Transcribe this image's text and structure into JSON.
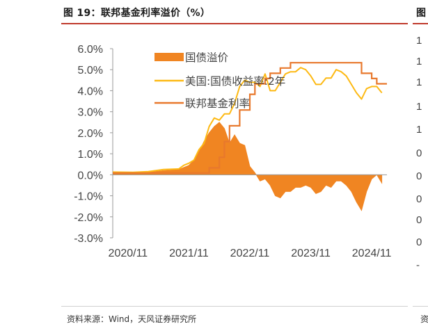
{
  "figure": {
    "title": "图 19：联邦基金利率溢价（%）",
    "source": "资料来源：Wind，天风证券研究所",
    "right_title_fragment": "图",
    "right_source_fragment": "资"
  },
  "right_panel_ticks": [
    "1",
    "1",
    "1",
    "1",
    "1",
    "0",
    "0",
    "0",
    "0",
    "0",
    "-"
  ],
  "colors": {
    "premium": "#F08522",
    "treasury": "#FDB913",
    "fedfunds": "#E8782C",
    "axis": "#9a9a9a",
    "rule": "#c0392b"
  },
  "chart_data": {
    "type": "line",
    "title": "",
    "xlabel": "",
    "ylabel": "",
    "ylim": [
      -3.0,
      6.0
    ],
    "yticks": [
      "6.0%",
      "5.0%",
      "4.0%",
      "3.0%",
      "2.0%",
      "1.0%",
      "0.0%",
      "-1.0%",
      "-2.0%",
      "-3.0%"
    ],
    "x_range": [
      "2020-08",
      "2025-02"
    ],
    "xticks": [
      "2020/11",
      "2021/11",
      "2022/11",
      "2023/11",
      "2024/11"
    ],
    "legend_position": "top-left",
    "grid": false,
    "series": [
      {
        "name": "国债溢价",
        "style": "area",
        "x": [
          "2020-08",
          "2020-12",
          "2021-03",
          "2021-06",
          "2021-09",
          "2021-10",
          "2021-11",
          "2021-12",
          "2022-01",
          "2022-02",
          "2022-03",
          "2022-04",
          "2022-05",
          "2022-06",
          "2022-07",
          "2022-08",
          "2022-09",
          "2022-10",
          "2022-11",
          "2022-12",
          "2023-01",
          "2023-02",
          "2023-03",
          "2023-04",
          "2023-05",
          "2023-06",
          "2023-07",
          "2023-08",
          "2023-09",
          "2023-10",
          "2023-11",
          "2023-12",
          "2024-01",
          "2024-02",
          "2024-03",
          "2024-04",
          "2024-05",
          "2024-06",
          "2024-07",
          "2024-08",
          "2024-09",
          "2024-10",
          "2024-11",
          "2024-12",
          "2025-01"
        ],
        "values": [
          0.1,
          0.1,
          0.12,
          0.2,
          0.25,
          0.35,
          0.45,
          0.7,
          1.1,
          1.6,
          2.0,
          2.3,
          2.5,
          2.2,
          1.5,
          1.9,
          1.5,
          1.4,
          0.4,
          0.1,
          -0.3,
          -0.2,
          -0.5,
          -1.0,
          -1.1,
          -0.8,
          -0.8,
          -0.6,
          -0.6,
          -0.5,
          -0.6,
          -0.9,
          -0.8,
          -0.5,
          -0.6,
          -0.3,
          -0.3,
          -0.5,
          -0.8,
          -1.3,
          -1.7,
          -0.8,
          -0.2,
          0.0,
          -0.4
        ]
      },
      {
        "name": "美国:国债收益率:2年",
        "style": "line",
        "x": [
          "2020-08",
          "2020-12",
          "2021-03",
          "2021-06",
          "2021-09",
          "2021-10",
          "2021-11",
          "2021-12",
          "2022-01",
          "2022-02",
          "2022-03",
          "2022-04",
          "2022-05",
          "2022-06",
          "2022-07",
          "2022-08",
          "2022-09",
          "2022-10",
          "2022-11",
          "2022-12",
          "2023-01",
          "2023-02",
          "2023-03",
          "2023-04",
          "2023-05",
          "2023-06",
          "2023-07",
          "2023-08",
          "2023-09",
          "2023-10",
          "2023-11",
          "2023-12",
          "2024-01",
          "2024-02",
          "2024-03",
          "2024-04",
          "2024-05",
          "2024-06",
          "2024-07",
          "2024-08",
          "2024-09",
          "2024-10",
          "2024-11",
          "2024-12",
          "2025-01"
        ],
        "values": [
          0.13,
          0.12,
          0.15,
          0.25,
          0.28,
          0.45,
          0.55,
          0.7,
          1.2,
          1.5,
          2.3,
          2.7,
          2.6,
          2.9,
          2.9,
          3.4,
          4.2,
          4.5,
          4.4,
          4.4,
          4.2,
          4.8,
          4.0,
          4.0,
          4.4,
          4.8,
          4.9,
          4.9,
          5.1,
          5.0,
          4.7,
          4.3,
          4.3,
          4.6,
          4.6,
          5.0,
          4.9,
          4.7,
          4.3,
          3.9,
          3.6,
          4.1,
          4.2,
          4.2,
          3.9
        ]
      },
      {
        "name": "联邦基金利率",
        "style": "step",
        "x": [
          "2020-08",
          "2022-03",
          "2022-05",
          "2022-06",
          "2022-07",
          "2022-09",
          "2022-11",
          "2022-12",
          "2023-02",
          "2023-03",
          "2023-05",
          "2023-07",
          "2024-09",
          "2024-11",
          "2024-12",
          "2025-02"
        ],
        "values": [
          0.08,
          0.33,
          0.83,
          1.58,
          2.33,
          3.08,
          3.83,
          4.33,
          4.58,
          4.83,
          5.08,
          5.33,
          4.83,
          4.58,
          4.33,
          4.33
        ]
      }
    ]
  }
}
